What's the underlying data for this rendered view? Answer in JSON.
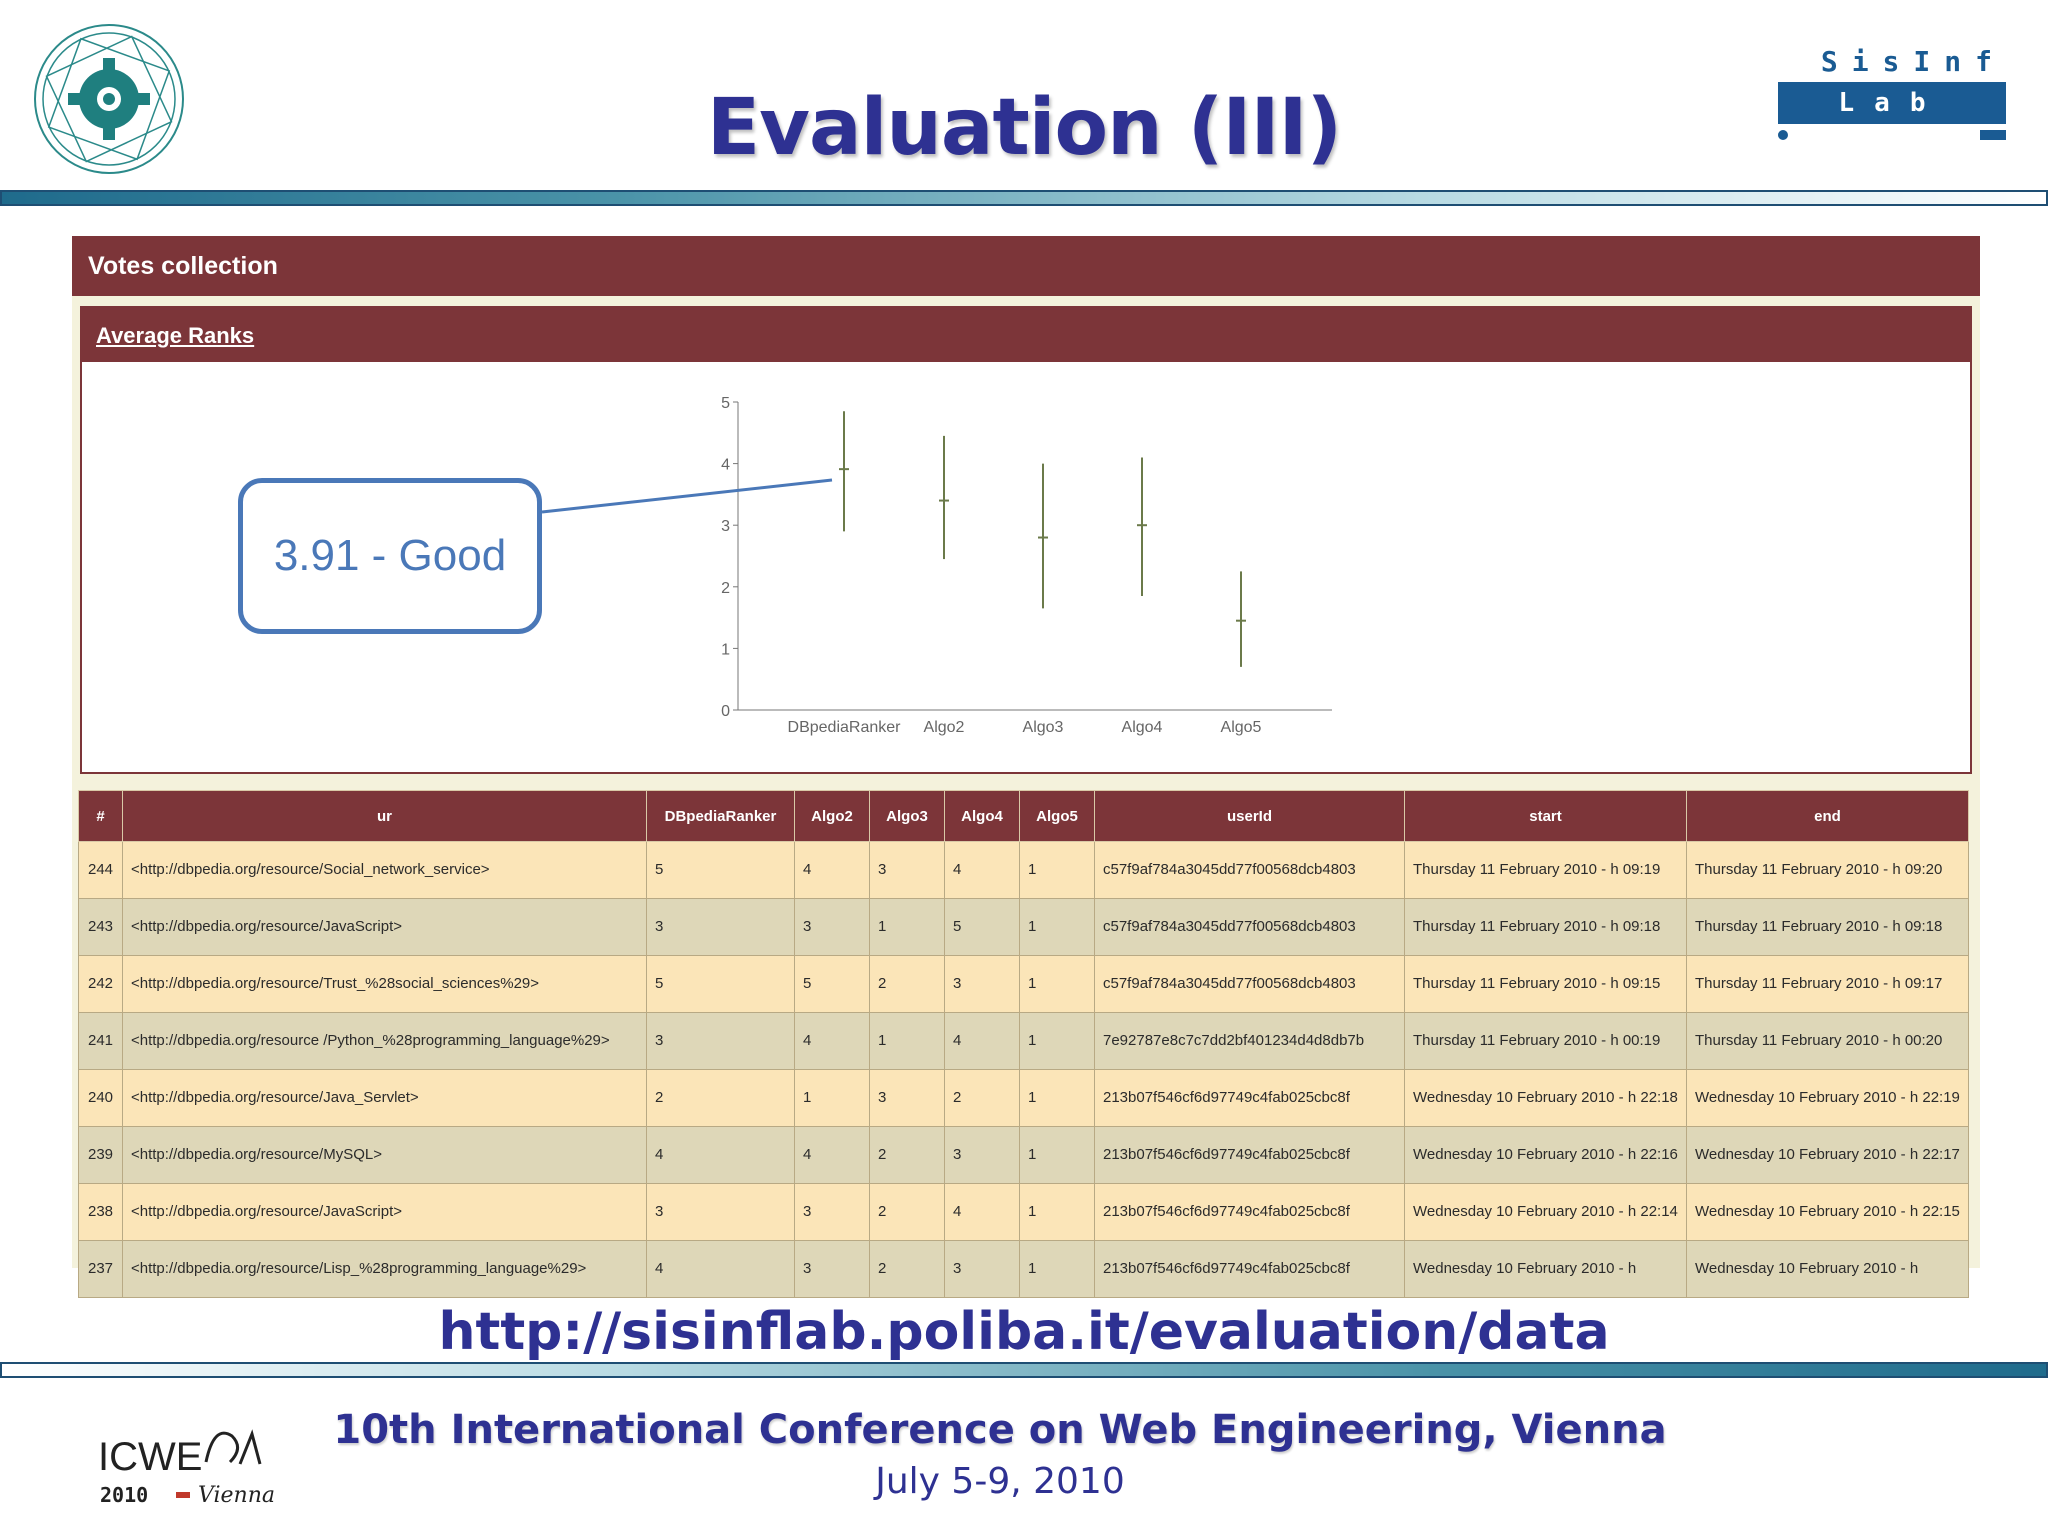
{
  "slide": {
    "title": "Evaluation (III)",
    "url": "http://sisinflab.poliba.it/evaluation/data",
    "conference": "10th International Conference on Web Engineering, Vienna",
    "dates": "July 5-9, 2010",
    "callout": "3.91 - Good"
  },
  "logos": {
    "lab_top": "SisInf",
    "lab_mid": "Lab",
    "icwe_name": "ICWE",
    "icwe_sub": "2010",
    "icwe_city": "Vienna"
  },
  "app": {
    "panel_title": "Votes collection",
    "chart_link": "Average Ranks"
  },
  "chart_data": {
    "type": "scatter",
    "title": "",
    "xlabel": "",
    "ylabel": "",
    "ylim": [
      0,
      5
    ],
    "yticks": [
      "0",
      "1",
      "2",
      "3",
      "4",
      "5"
    ],
    "categories": [
      "DBpediaRanker",
      "Algo2",
      "Algo3",
      "Algo4",
      "Algo5"
    ],
    "mean": [
      3.91,
      3.4,
      2.8,
      3.0,
      1.45
    ],
    "low": [
      2.9,
      2.45,
      1.65,
      1.85,
      0.7
    ],
    "high": [
      4.85,
      4.45,
      4.0,
      4.1,
      2.25
    ],
    "color": "#6b7a4a",
    "grid": false
  },
  "table": {
    "columns": [
      "#",
      "ur",
      "DBpediaRanker",
      "Algo2",
      "Algo3",
      "Algo4",
      "Algo5",
      "userId",
      "start",
      "end"
    ],
    "rows": [
      [
        "244",
        "<http://dbpedia.org/resource/Social_network_service>",
        "5",
        "4",
        "3",
        "4",
        "1",
        "c57f9af784a3045dd77f00568dcb4803",
        "Thursday 11 February 2010 - h 09:19",
        "Thursday 11 February 2010 - h 09:20"
      ],
      [
        "243",
        "<http://dbpedia.org/resource/JavaScript>",
        "3",
        "3",
        "1",
        "5",
        "1",
        "c57f9af784a3045dd77f00568dcb4803",
        "Thursday 11 February 2010 - h 09:18",
        "Thursday 11 February 2010 - h 09:18"
      ],
      [
        "242",
        "<http://dbpedia.org/resource/Trust_%28social_sciences%29>",
        "5",
        "5",
        "2",
        "3",
        "1",
        "c57f9af784a3045dd77f00568dcb4803",
        "Thursday 11 February 2010 - h 09:15",
        "Thursday 11 February 2010 - h 09:17"
      ],
      [
        "241",
        "<http://dbpedia.org/resource /Python_%28programming_language%29>",
        "3",
        "4",
        "1",
        "4",
        "1",
        "7e92787e8c7c7dd2bf401234d4d8db7b",
        "Thursday 11 February 2010 - h 00:19",
        "Thursday 11 February 2010 - h 00:20"
      ],
      [
        "240",
        "<http://dbpedia.org/resource/Java_Servlet>",
        "2",
        "1",
        "3",
        "2",
        "1",
        "213b07f546cf6d97749c4fab025cbc8f",
        "Wednesday 10 February 2010 - h 22:18",
        "Wednesday 10 February 2010 - h 22:19"
      ],
      [
        "239",
        "<http://dbpedia.org/resource/MySQL>",
        "4",
        "4",
        "2",
        "3",
        "1",
        "213b07f546cf6d97749c4fab025cbc8f",
        "Wednesday 10 February 2010 - h 22:16",
        "Wednesday 10 February 2010 - h 22:17"
      ],
      [
        "238",
        "<http://dbpedia.org/resource/JavaScript>",
        "3",
        "3",
        "2",
        "4",
        "1",
        "213b07f546cf6d97749c4fab025cbc8f",
        "Wednesday 10 February 2010 - h 22:14",
        "Wednesday 10 February 2010 - h 22:15"
      ],
      [
        "237",
        "<http://dbpedia.org/resource/Lisp_%28programming_language%29>",
        "4",
        "3",
        "2",
        "3",
        "1",
        "213b07f546cf6d97749c4fab025cbc8f",
        "Wednesday 10 February 2010 - h",
        "Wednesday 10 February 2010 - h"
      ]
    ]
  },
  "colors": {
    "title_blue": "#2e3192",
    "panel_maroon": "#7c3539",
    "row_light": "#fbe5b8",
    "row_dark": "#ded7b8",
    "callout_blue": "#4a78b8"
  }
}
